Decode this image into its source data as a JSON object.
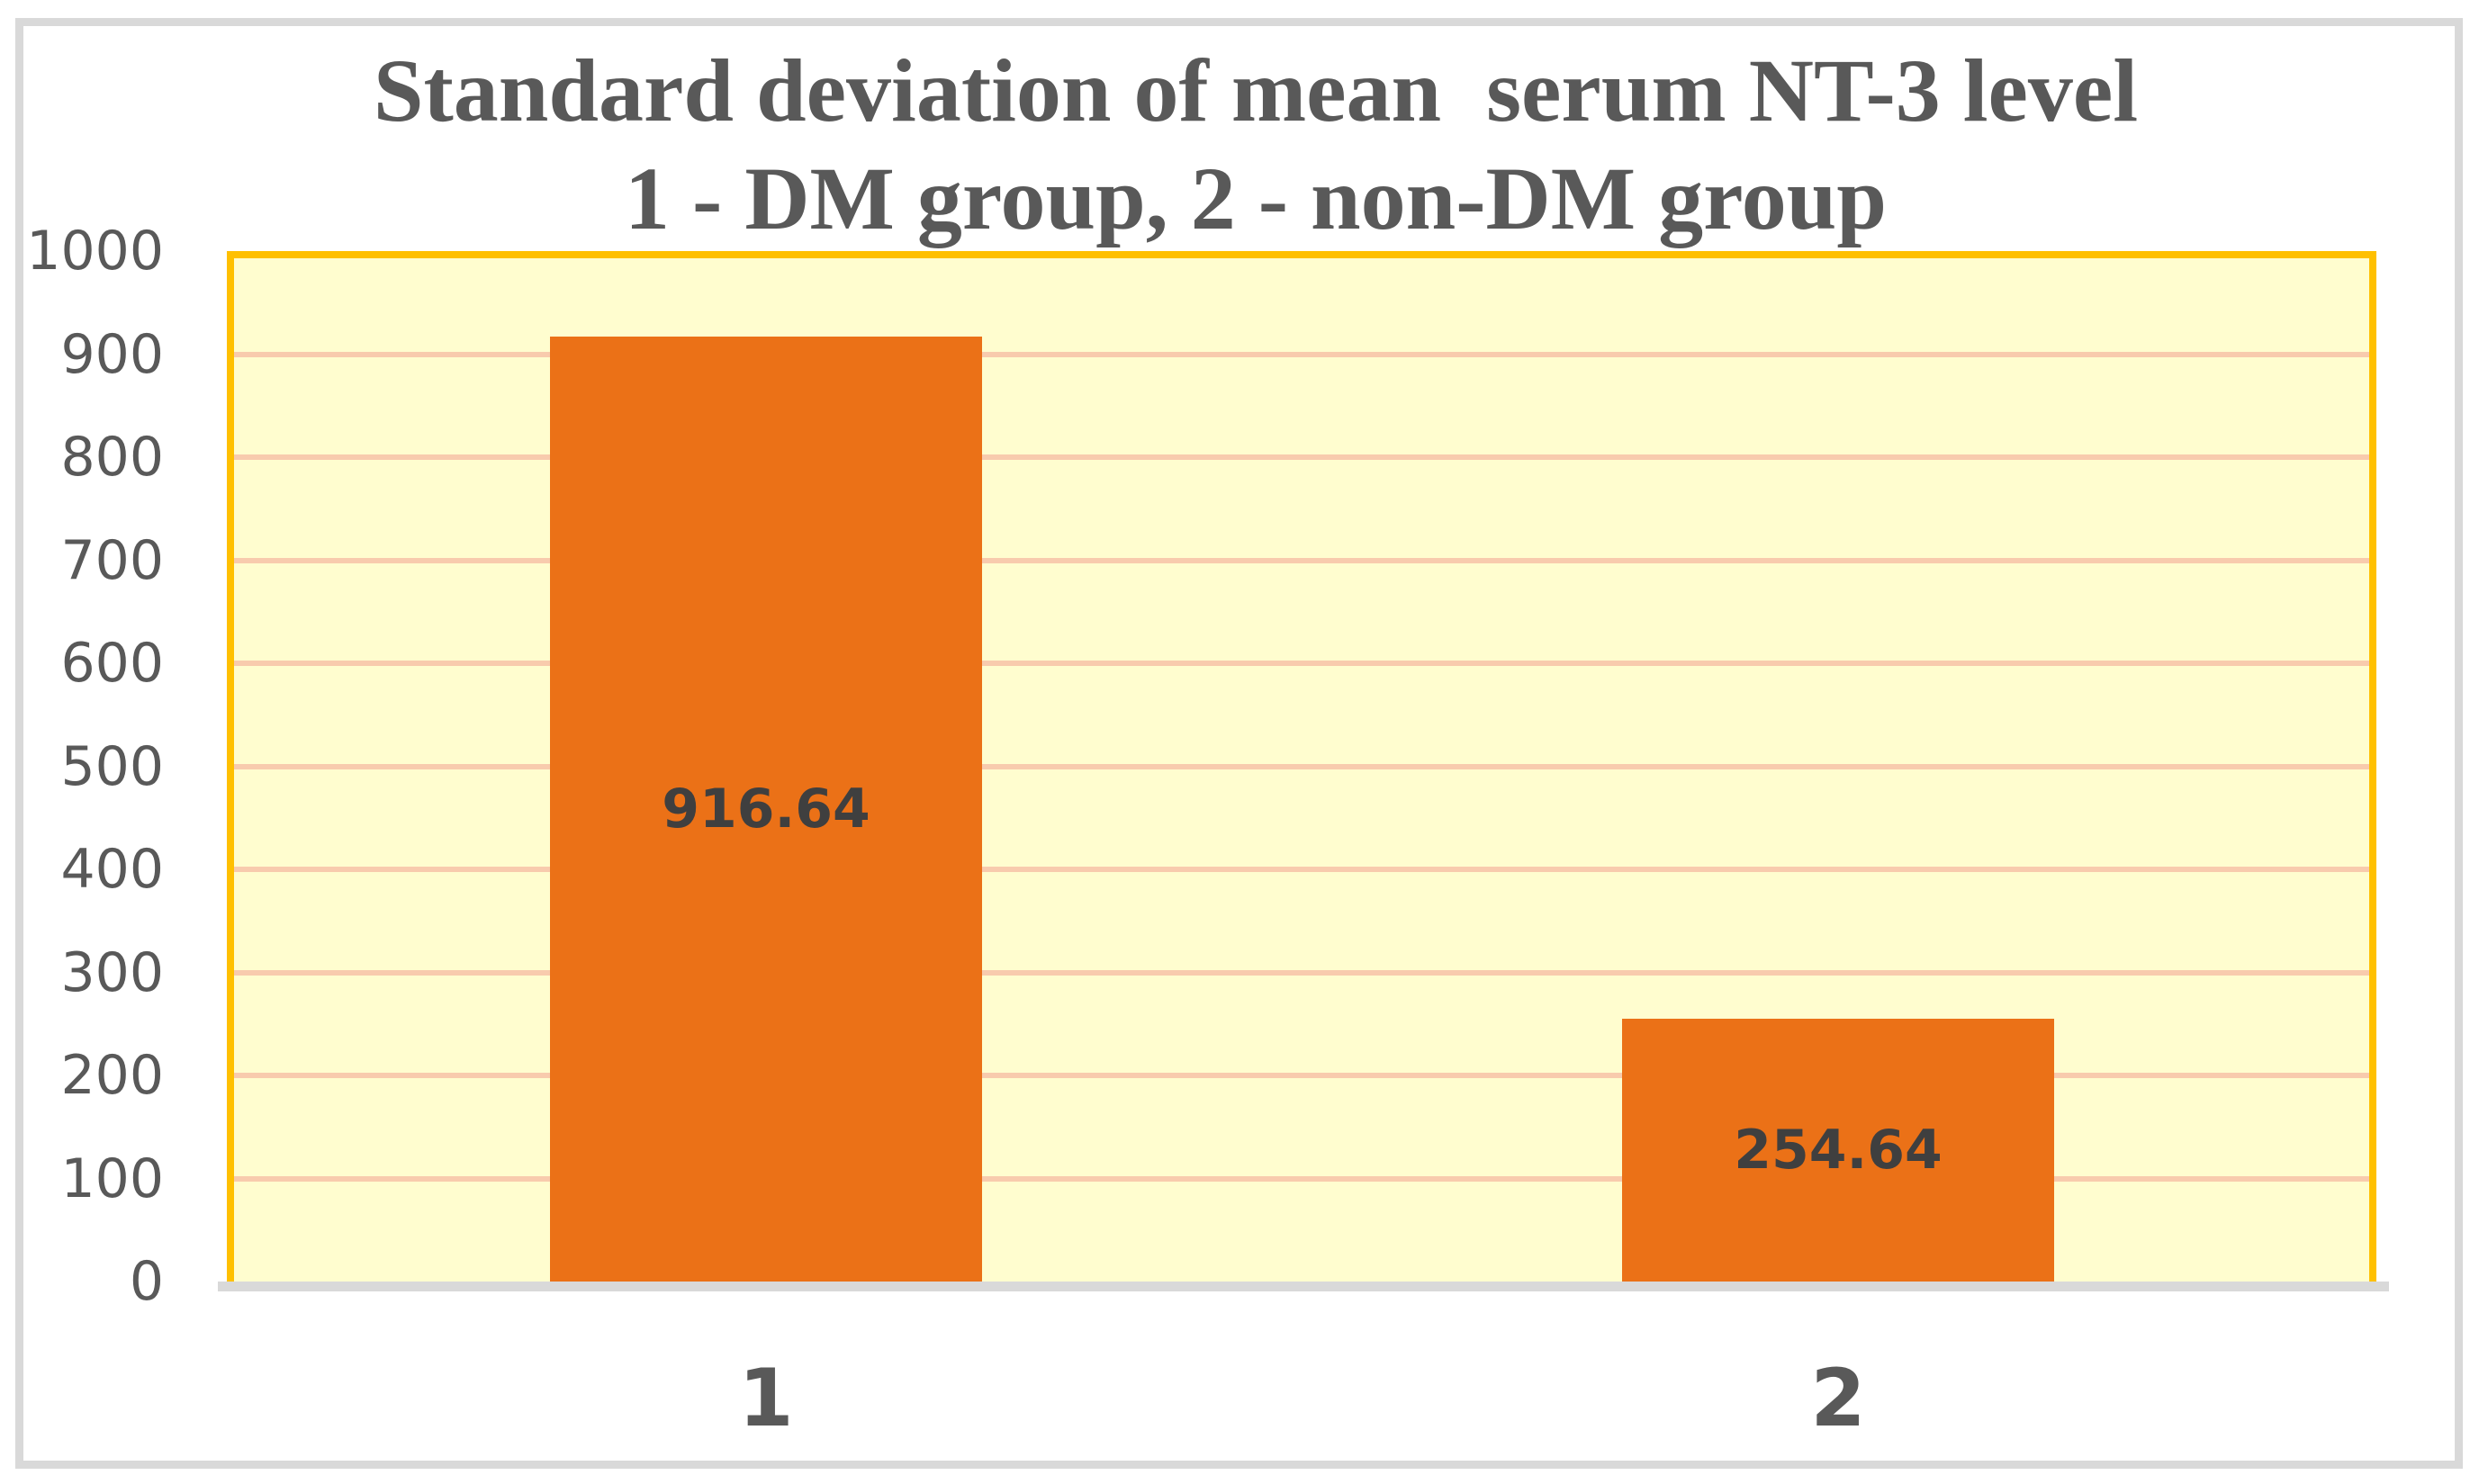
{
  "chart_data": {
    "type": "bar",
    "title": "Standard deviation of mean  serum NT-3 level",
    "subtitle": "1 - DM group, 2 - non-DM group",
    "categories": [
      "1",
      "2"
    ],
    "values": [
      916.64,
      254.64
    ],
    "data_labels": [
      "916.64",
      "254.64"
    ],
    "xlabel": "",
    "ylabel": "",
    "ylim": [
      0,
      1000
    ],
    "yticks": [
      0,
      100,
      200,
      300,
      400,
      500,
      600,
      700,
      800,
      900,
      1000
    ],
    "grid": true,
    "legend": "none",
    "colors": {
      "bar_fill": "#EB7117",
      "plot_fill": "#FFFDCF",
      "plot_border": "#FFC000",
      "gridline": "#F8CBAD",
      "axis_line": "#D9D9D9",
      "frame_border": "#D9D9D9",
      "title_text": "#595959",
      "tick_text": "#595959",
      "data_label_text": "#3F3F3F"
    }
  }
}
